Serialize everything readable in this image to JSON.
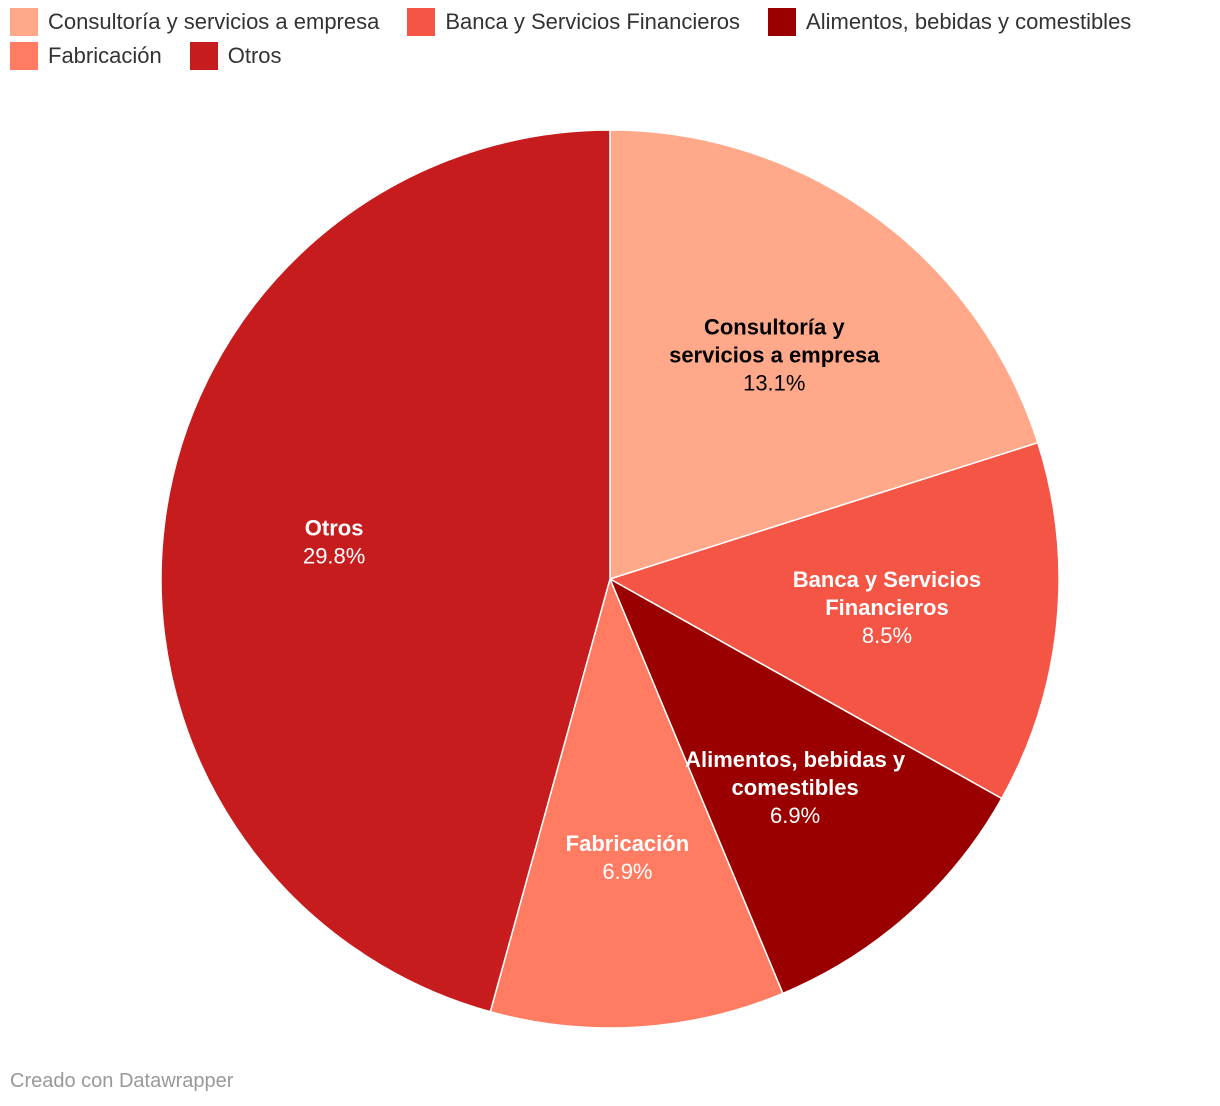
{
  "chart_data": {
    "type": "pie",
    "legend_position": "top-left",
    "slices": [
      {
        "label": "Consultoría y servicios a empresa",
        "label_lines": [
          "Consultoría y",
          "servicios a empresa"
        ],
        "value": 13.1,
        "value_label": "13.1%",
        "color": "#ffa88a",
        "label_color": "#000000"
      },
      {
        "label": "Banca y Servicios Financieros",
        "label_lines": [
          "Banca y Servicios",
          "Financieros"
        ],
        "value": 8.5,
        "value_label": "8.5%",
        "color": "#f55544",
        "label_color": "#ffffff"
      },
      {
        "label": "Alimentos, bebidas y comestibles",
        "label_lines": [
          "Alimentos, bebidas y",
          "comestibles"
        ],
        "value": 6.9,
        "value_label": "6.9%",
        "color": "#9a0000",
        "label_color": "#ffffff"
      },
      {
        "label": "Fabricación",
        "label_lines": [
          "Fabricación"
        ],
        "value": 6.9,
        "value_label": "6.9%",
        "color": "#ff7b62",
        "label_color": "#ffffff"
      },
      {
        "label": "Otros",
        "label_lines": [
          "Otros"
        ],
        "value": 29.8,
        "value_label": "29.8%",
        "color": "#c71c1e",
        "label_color": "#ffffff"
      }
    ]
  },
  "footer": {
    "credit": "Creado con Datawrapper"
  }
}
